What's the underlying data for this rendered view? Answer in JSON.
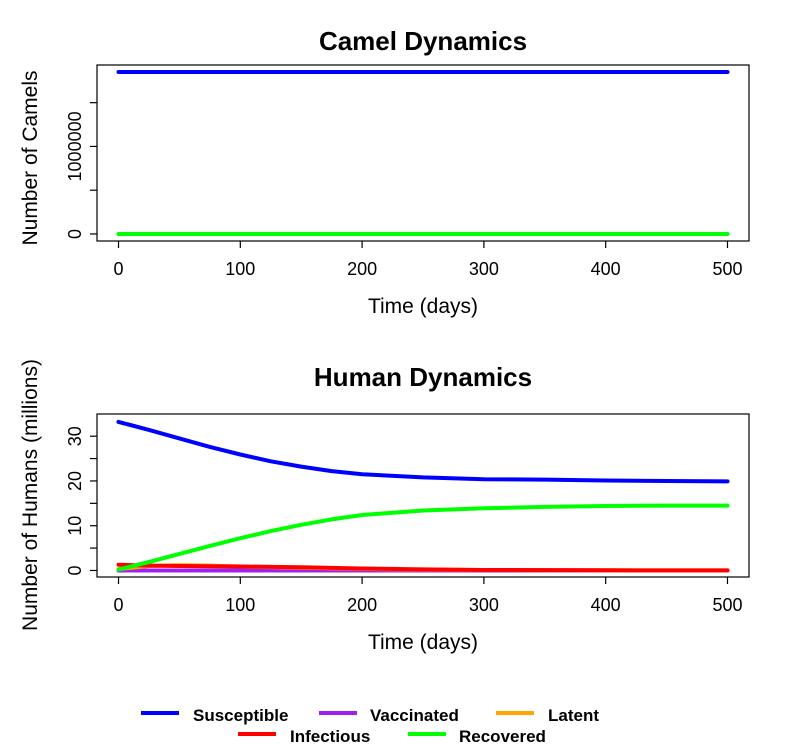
{
  "chart_data": [
    {
      "type": "line",
      "title": "Camel Dynamics",
      "xlabel": "Time (days)",
      "ylabel": "Number of Camels",
      "xlim": [
        0,
        500
      ],
      "ylim": [
        0,
        1850000
      ],
      "xticks": [
        0,
        100,
        200,
        300,
        400,
        500
      ],
      "yticks": [
        0,
        1000000
      ],
      "yticks_unlabeled": [
        500000,
        1500000
      ],
      "ytick_labels": [
        "0",
        "1000000"
      ],
      "series": [
        {
          "color": "#0000ff",
          "x": [
            0,
            500
          ],
          "y": [
            1850000,
            1850000
          ]
        },
        {
          "color": "#00ff00",
          "x": [
            0,
            500
          ],
          "y": [
            0,
            0
          ]
        }
      ]
    },
    {
      "type": "line",
      "title": "Human Dynamics",
      "xlabel": "Time (days)",
      "ylabel": "Number of Humans (millions)",
      "xlim": [
        0,
        500
      ],
      "ylim": [
        0,
        33.5
      ],
      "xticks": [
        0,
        100,
        200,
        300,
        400,
        500
      ],
      "yticks": [
        0,
        10,
        20,
        30
      ],
      "yticks_unlabeled": [
        5,
        15,
        25
      ],
      "series": [
        {
          "name": "Susceptible",
          "color": "#0000ff",
          "x": [
            0,
            25,
            50,
            75,
            100,
            125,
            150,
            175,
            200,
            250,
            300,
            350,
            400,
            450,
            500
          ],
          "y": [
            33.2,
            31.4,
            29.5,
            27.6,
            25.9,
            24.4,
            23.2,
            22.2,
            21.5,
            20.8,
            20.4,
            20.3,
            20.1,
            20.0,
            19.9
          ]
        },
        {
          "name": "Vaccinated",
          "color": "#a020f0",
          "x": [
            0,
            100,
            200,
            300,
            400,
            500
          ],
          "y": [
            0,
            0,
            0,
            0,
            0,
            0
          ]
        },
        {
          "name": "Latent",
          "color": "#ffa500",
          "x": [
            0,
            25,
            50,
            75,
            100,
            150,
            200,
            250,
            300,
            400,
            500
          ],
          "y": [
            0.3,
            1.0,
            1.2,
            1.1,
            0.9,
            0.6,
            0.35,
            0.2,
            0.1,
            0.05,
            0.02
          ]
        },
        {
          "name": "Infectious",
          "color": "#ff0000",
          "x": [
            0,
            25,
            50,
            75,
            100,
            150,
            200,
            250,
            300,
            400,
            500
          ],
          "y": [
            1.3,
            1.1,
            1.0,
            0.95,
            0.9,
            0.7,
            0.45,
            0.25,
            0.1,
            0.05,
            0.02
          ]
        },
        {
          "name": "Recovered",
          "color": "#00ff00",
          "x": [
            0,
            25,
            50,
            75,
            100,
            125,
            150,
            175,
            200,
            250,
            300,
            350,
            400,
            450,
            500
          ],
          "y": [
            0.2,
            1.9,
            3.7,
            5.5,
            7.2,
            8.8,
            10.2,
            11.4,
            12.4,
            13.4,
            13.9,
            14.2,
            14.4,
            14.5,
            14.5
          ]
        }
      ]
    }
  ],
  "legend": {
    "placement": "bottom",
    "items": [
      {
        "label": "Susceptible",
        "color": "#0000ff"
      },
      {
        "label": "Vaccinated",
        "color": "#a020f0"
      },
      {
        "label": "Latent",
        "color": "#ffa500"
      },
      {
        "label": "Infectious",
        "color": "#ff0000"
      },
      {
        "label": "Recovered",
        "color": "#00ff00"
      }
    ]
  }
}
